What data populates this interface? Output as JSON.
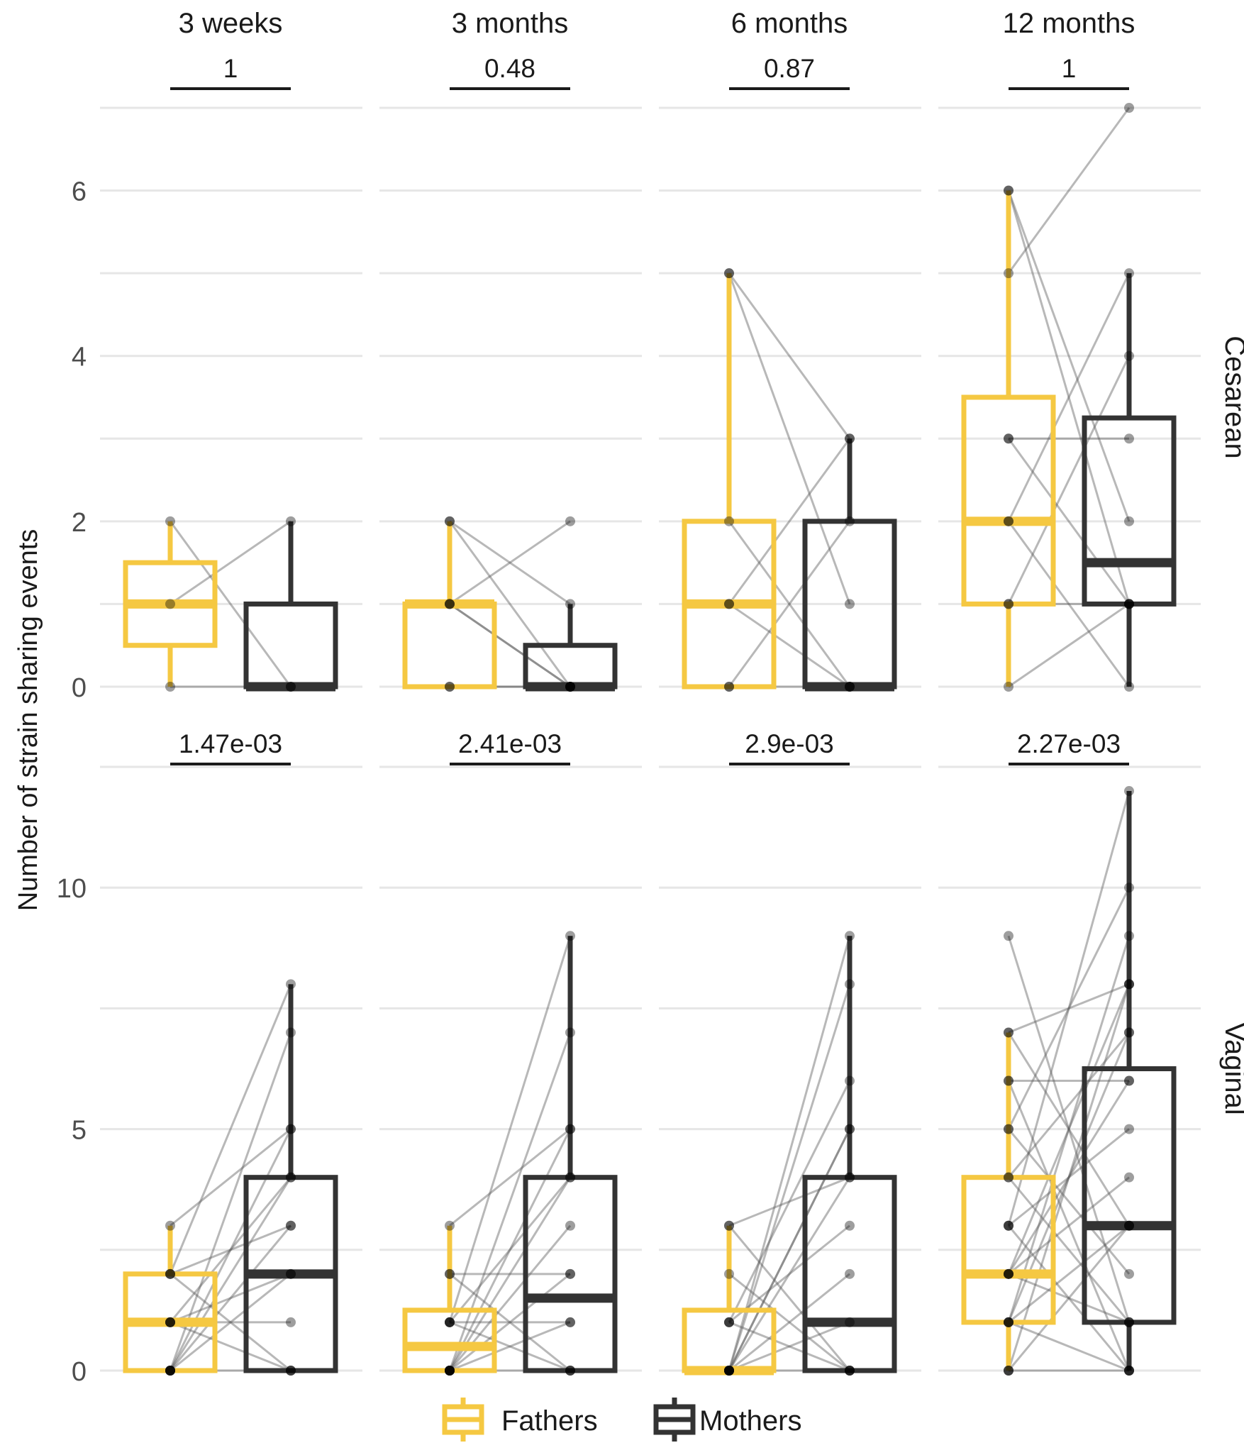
{
  "chart_data": {
    "type": "box",
    "title": "",
    "ylabel": "Number of strain sharing events",
    "xlabel": "",
    "timepoints": [
      "3 weeks",
      "3 months",
      "6 months",
      "12 months"
    ],
    "groups": [
      "Fathers",
      "Mothers"
    ],
    "legend": {
      "position": "bottom",
      "items": [
        "Fathers",
        "Mothers"
      ]
    },
    "colors": {
      "fathers": "#F5C842",
      "mothers": "#333333",
      "points": "#000000",
      "lines": "#555555",
      "grid": "#e6e6e6",
      "text": "#1a1a1a",
      "tick": "#4d4d4d"
    },
    "rows": [
      {
        "label": "Cesarean",
        "ylim": [
          0,
          7
        ],
        "yticks": [
          0,
          2,
          4,
          6
        ],
        "gridlines": [
          0,
          1,
          2,
          3,
          4,
          5,
          6,
          7
        ],
        "pvalues": [
          "1",
          "0.48",
          "0.87",
          "1"
        ],
        "panels": [
          {
            "fathers": {
              "q1": 0.5,
              "median": 1,
              "q3": 1.5,
              "whisker_low": 0,
              "whisker_high": 2
            },
            "mothers": {
              "q1": 0,
              "median": 0,
              "q3": 1,
              "whisker_low": 0,
              "whisker_high": 2
            },
            "pairs": [
              [
                2,
                0
              ],
              [
                1,
                2
              ],
              [
                0,
                0
              ]
            ]
          },
          {
            "fathers": {
              "q1": 0,
              "median": 1,
              "q3": 1,
              "whisker_low": 0,
              "whisker_high": 2
            },
            "mothers": {
              "q1": 0,
              "median": 0,
              "q3": 0.5,
              "whisker_low": 0,
              "whisker_high": 1
            },
            "pairs": [
              [
                2,
                0
              ],
              [
                2,
                1
              ],
              [
                1,
                2
              ],
              [
                1,
                0
              ],
              [
                1,
                0
              ],
              [
                0,
                0
              ],
              [
                0,
                0
              ]
            ]
          },
          {
            "fathers": {
              "q1": 0,
              "median": 1,
              "q3": 2,
              "whisker_low": 0,
              "whisker_high": 5
            },
            "mothers": {
              "q1": 0,
              "median": 0,
              "q3": 2,
              "whisker_low": 0,
              "whisker_high": 3
            },
            "pairs": [
              [
                5,
                3
              ],
              [
                5,
                1
              ],
              [
                2,
                0
              ],
              [
                1,
                3
              ],
              [
                1,
                0
              ],
              [
                0,
                2
              ],
              [
                0,
                0
              ]
            ]
          },
          {
            "fathers": {
              "q1": 1,
              "median": 2,
              "q3": 3.5,
              "whisker_low": 0,
              "whisker_high": 6
            },
            "mothers": {
              "q1": 1,
              "median": 1.5,
              "q3": 3.25,
              "whisker_low": 0,
              "whisker_high": 5
            },
            "pairs": [
              [
                6,
                1
              ],
              [
                6,
                2
              ],
              [
                5,
                7
              ],
              [
                3,
                3
              ],
              [
                3,
                1
              ],
              [
                2,
                5
              ],
              [
                2,
                0
              ],
              [
                1,
                4
              ],
              [
                1,
                1
              ],
              [
                0,
                1
              ]
            ]
          }
        ]
      },
      {
        "label": "Vaginal",
        "ylim": [
          0,
          12.5
        ],
        "yticks": [
          0,
          5,
          10
        ],
        "gridlines": [
          0,
          2.5,
          5,
          7.5,
          10,
          12.5
        ],
        "pvalues": [
          "1.47e-03",
          "2.41e-03",
          "2.9e-03",
          "2.27e-03"
        ],
        "panels": [
          {
            "fathers": {
              "q1": 0,
              "median": 1,
              "q3": 2,
              "whisker_low": 0,
              "whisker_high": 3
            },
            "mothers": {
              "q1": 0,
              "median": 2,
              "q3": 4,
              "whisker_low": 0,
              "whisker_high": 8
            },
            "pairs": [
              [
                3,
                5
              ],
              [
                2,
                8
              ],
              [
                2,
                3
              ],
              [
                2,
                0
              ],
              [
                1,
                2
              ],
              [
                1,
                1
              ],
              [
                1,
                4
              ],
              [
                1,
                0
              ],
              [
                0,
                7
              ],
              [
                0,
                3
              ],
              [
                0,
                2
              ],
              [
                0,
                0
              ],
              [
                0,
                4
              ],
              [
                0,
                5
              ]
            ]
          },
          {
            "fathers": {
              "q1": 0,
              "median": 0.5,
              "q3": 1.25,
              "whisker_low": 0,
              "whisker_high": 3
            },
            "mothers": {
              "q1": 0,
              "median": 1.5,
              "q3": 4,
              "whisker_low": 0,
              "whisker_high": 9
            },
            "pairs": [
              [
                3,
                5
              ],
              [
                2,
                2
              ],
              [
                2,
                0
              ],
              [
                1,
                9
              ],
              [
                1,
                4
              ],
              [
                1,
                1
              ],
              [
                1,
                0
              ],
              [
                0,
                7
              ],
              [
                0,
                5
              ],
              [
                0,
                3
              ],
              [
                0,
                1
              ],
              [
                0,
                0
              ],
              [
                0,
                4
              ],
              [
                0,
                2
              ]
            ]
          },
          {
            "fathers": {
              "q1": 0,
              "median": 0,
              "q3": 1.25,
              "whisker_low": 0,
              "whisker_high": 3
            },
            "mothers": {
              "q1": 0,
              "median": 1,
              "q3": 4,
              "whisker_low": 0,
              "whisker_high": 9
            },
            "pairs": [
              [
                3,
                4
              ],
              [
                3,
                0
              ],
              [
                2,
                0
              ],
              [
                1,
                6
              ],
              [
                1,
                3
              ],
              [
                1,
                0
              ],
              [
                0,
                9
              ],
              [
                0,
                8
              ],
              [
                0,
                5
              ],
              [
                0,
                4
              ],
              [
                0,
                2
              ],
              [
                0,
                1
              ],
              [
                0,
                0
              ],
              [
                0,
                5
              ]
            ]
          },
          {
            "fathers": {
              "q1": 1,
              "median": 2,
              "q3": 4,
              "whisker_low": 0,
              "whisker_high": 7
            },
            "mothers": {
              "q1": 1,
              "median": 3,
              "q3": 6.25,
              "whisker_low": 0,
              "whisker_high": 12
            },
            "pairs": [
              [
                9,
                1
              ],
              [
                7,
                8
              ],
              [
                7,
                3
              ],
              [
                6,
                6
              ],
              [
                6,
                0
              ],
              [
                5,
                10
              ],
              [
                5,
                2
              ],
              [
                4,
                7
              ],
              [
                4,
                1
              ],
              [
                3,
                12
              ],
              [
                3,
                5
              ],
              [
                3,
                0
              ],
              [
                2,
                8
              ],
              [
                2,
                4
              ],
              [
                2,
                6
              ],
              [
                2,
                1
              ],
              [
                1,
                9
              ],
              [
                1,
                7
              ],
              [
                1,
                3
              ],
              [
                1,
                0
              ],
              [
                0,
                8
              ],
              [
                0,
                3
              ],
              [
                0,
                0
              ]
            ]
          }
        ]
      }
    ]
  }
}
